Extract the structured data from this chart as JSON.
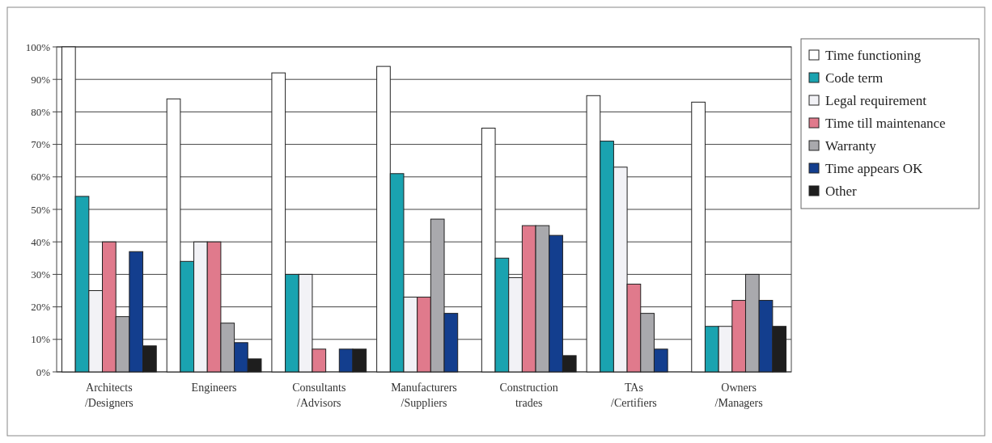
{
  "chart_data": {
    "type": "bar",
    "categories": [
      "Architects /Designers",
      "Engineers",
      "Consultants /Advisors",
      "Manufacturers /Suppliers",
      "Construction trades",
      "TAs /Certifiers",
      "Owners /Managers"
    ],
    "series": [
      {
        "name": "Time functioning",
        "color": "#ffffff",
        "values": [
          100,
          84,
          92,
          94,
          75,
          85,
          83
        ]
      },
      {
        "name": "Code term",
        "color": "#1aa3b0",
        "values": [
          54,
          34,
          30,
          61,
          35,
          71,
          14
        ]
      },
      {
        "name": "Legal requirement",
        "color": "#f2f2f6",
        "values": [
          25,
          40,
          30,
          23,
          29,
          63,
          14
        ]
      },
      {
        "name": "Time till maintenance",
        "color": "#e07a8c",
        "values": [
          40,
          40,
          7,
          23,
          45,
          27,
          22
        ]
      },
      {
        "name": "Warranty",
        "color": "#a9a9ad",
        "values": [
          17,
          15,
          0,
          47,
          45,
          18,
          30
        ]
      },
      {
        "name": "Time appears OK",
        "color": "#133e8e",
        "values": [
          37,
          9,
          7,
          18,
          42,
          7,
          22
        ]
      },
      {
        "name": "Other",
        "color": "#1e1e1e",
        "values": [
          8,
          4,
          7,
          0,
          5,
          0,
          14
        ]
      }
    ],
    "ylim": [
      0,
      100
    ],
    "yticks": [
      {
        "value": 0,
        "label": "0%"
      },
      {
        "value": 10,
        "label": "10%"
      },
      {
        "value": 20,
        "label": "20%"
      },
      {
        "value": 30,
        "label": "30%"
      },
      {
        "value": 40,
        "label": "40%"
      },
      {
        "value": 50,
        "label": "50%"
      },
      {
        "value": 60,
        "label": "60%"
      },
      {
        "value": 70,
        "label": "70%"
      },
      {
        "value": 80,
        "label": "80%"
      },
      {
        "value": 90,
        "label": "90%"
      },
      {
        "value": 100,
        "label": "100%"
      }
    ],
    "grid": "y",
    "legend": "right"
  }
}
